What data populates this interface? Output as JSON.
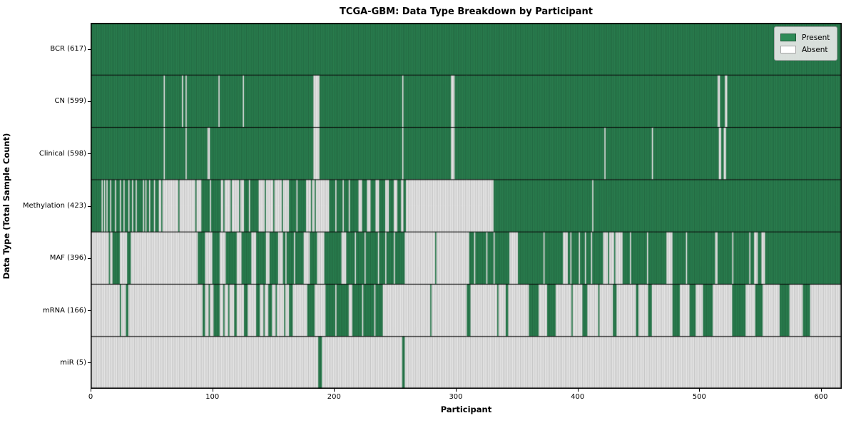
{
  "title": "TCGA-GBM: Data Type Breakdown by Participant",
  "chart_data": {
    "type": "heatmap",
    "subtype": "presence-absence-matrix",
    "title": "TCGA-GBM: Data Type Breakdown by Participant",
    "xlabel": "Participant",
    "ylabel": "Data Type (Total Sample Count)",
    "x_ticks": [
      0,
      100,
      200,
      300,
      400,
      500,
      600
    ],
    "x_max": 617,
    "n_participants": 617,
    "grid": false,
    "legend": {
      "position": "upper right",
      "entries": [
        {
          "label": "Present",
          "color": "#2e8b57"
        },
        {
          "label": "Absent",
          "color": "#ffffff"
        }
      ]
    },
    "colors": {
      "present": "#2e8b57",
      "absent": "#ffffff",
      "bar_edge": "rgba(0,0,0,0.38)",
      "row_separator": "#000000",
      "plot_border": "#000000"
    },
    "series": [
      {
        "name": "BCR",
        "count": 617,
        "label": "BCR (617)",
        "present_segments": [
          [
            0,
            617
          ]
        ]
      },
      {
        "name": "CN",
        "count": 599,
        "label": "CN (599)",
        "present_segments": [
          [
            0,
            60
          ],
          [
            61,
            75
          ],
          [
            76,
            78
          ],
          [
            79,
            105
          ],
          [
            106,
            125
          ],
          [
            126,
            183
          ],
          [
            188,
            256
          ],
          [
            257,
            296
          ],
          [
            299,
            515
          ],
          [
            517,
            521
          ],
          [
            523,
            617
          ]
        ]
      },
      {
        "name": "Clinical",
        "count": 598,
        "label": "Clinical (598)",
        "present_segments": [
          [
            0,
            60
          ],
          [
            61,
            78
          ],
          [
            79,
            96
          ],
          [
            98,
            183
          ],
          [
            188,
            256
          ],
          [
            257,
            296
          ],
          [
            299,
            422
          ],
          [
            423,
            461
          ],
          [
            462,
            516
          ],
          [
            518,
            520
          ],
          [
            522,
            617
          ]
        ]
      },
      {
        "name": "Methylation",
        "count": 423,
        "label": "Methylation (423)",
        "present_segments": [
          [
            0,
            9
          ],
          [
            10,
            11
          ],
          [
            12,
            13
          ],
          [
            14,
            16
          ],
          [
            17,
            20
          ],
          [
            21,
            24
          ],
          [
            25,
            27
          ],
          [
            28,
            31
          ],
          [
            32,
            34
          ],
          [
            35,
            37
          ],
          [
            38,
            43
          ],
          [
            44,
            45
          ],
          [
            46,
            48
          ],
          [
            49,
            52
          ],
          [
            53,
            56
          ],
          [
            58,
            59
          ],
          [
            72,
            73
          ],
          [
            86,
            87
          ],
          [
            91,
            98
          ],
          [
            99,
            107
          ],
          [
            109,
            110
          ],
          [
            115,
            116
          ],
          [
            122,
            123
          ],
          [
            126,
            130
          ],
          [
            131,
            138
          ],
          [
            143,
            144
          ],
          [
            150,
            151
          ],
          [
            157,
            158
          ],
          [
            163,
            169
          ],
          [
            170,
            177
          ],
          [
            181,
            182
          ],
          [
            184,
            185
          ],
          [
            196,
            201
          ],
          [
            202,
            207
          ],
          [
            208,
            212
          ],
          [
            213,
            220
          ],
          [
            223,
            227
          ],
          [
            230,
            234
          ],
          [
            237,
            242
          ],
          [
            245,
            249
          ],
          [
            252,
            255
          ],
          [
            257,
            259
          ],
          [
            331,
            412
          ],
          [
            413,
            617
          ]
        ]
      },
      {
        "name": "MAF",
        "count": 396,
        "label": "MAF (396)",
        "present_segments": [
          [
            15,
            16
          ],
          [
            18,
            24
          ],
          [
            30,
            33
          ],
          [
            88,
            94
          ],
          [
            100,
            106
          ],
          [
            111,
            120
          ],
          [
            124,
            132
          ],
          [
            136,
            144
          ],
          [
            147,
            154
          ],
          [
            158,
            160
          ],
          [
            161,
            167
          ],
          [
            168,
            175
          ],
          [
            180,
            186
          ],
          [
            192,
            206
          ],
          [
            210,
            217
          ],
          [
            218,
            225
          ],
          [
            226,
            236
          ],
          [
            237,
            242
          ],
          [
            243,
            249
          ],
          [
            250,
            258
          ],
          [
            283,
            284
          ],
          [
            311,
            315
          ],
          [
            316,
            325
          ],
          [
            326,
            331
          ],
          [
            332,
            344
          ],
          [
            351,
            372
          ],
          [
            373,
            388
          ],
          [
            392,
            394
          ],
          [
            395,
            401
          ],
          [
            402,
            406
          ],
          [
            407,
            411
          ],
          [
            412,
            421
          ],
          [
            425,
            426
          ],
          [
            430,
            431
          ],
          [
            437,
            443
          ],
          [
            444,
            457
          ],
          [
            458,
            473
          ],
          [
            478,
            489
          ],
          [
            490,
            513
          ],
          [
            515,
            527
          ],
          [
            528,
            541
          ],
          [
            542,
            545
          ],
          [
            548,
            551
          ],
          [
            554,
            617
          ]
        ]
      },
      {
        "name": "mRNA",
        "count": 166,
        "label": "mRNA (166)",
        "present_segments": [
          [
            24,
            25
          ],
          [
            29,
            31
          ],
          [
            92,
            94
          ],
          [
            97,
            98
          ],
          [
            101,
            106
          ],
          [
            109,
            110
          ],
          [
            113,
            114
          ],
          [
            118,
            120
          ],
          [
            126,
            129
          ],
          [
            136,
            139
          ],
          [
            142,
            143
          ],
          [
            146,
            149
          ],
          [
            152,
            153
          ],
          [
            159,
            160
          ],
          [
            163,
            166
          ],
          [
            178,
            184
          ],
          [
            193,
            201
          ],
          [
            202,
            212
          ],
          [
            215,
            223
          ],
          [
            224,
            233
          ],
          [
            234,
            240
          ],
          [
            279,
            280
          ],
          [
            309,
            312
          ],
          [
            334,
            335
          ],
          [
            341,
            343
          ],
          [
            360,
            368
          ],
          [
            375,
            382
          ],
          [
            395,
            396
          ],
          [
            404,
            408
          ],
          [
            417,
            418
          ],
          [
            429,
            432
          ],
          [
            448,
            450
          ],
          [
            458,
            461
          ],
          [
            478,
            484
          ],
          [
            492,
            497
          ],
          [
            503,
            511
          ],
          [
            527,
            538
          ],
          [
            546,
            552
          ],
          [
            566,
            574
          ],
          [
            585,
            591
          ]
        ]
      },
      {
        "name": "miR",
        "count": 5,
        "label": "miR (5)",
        "present_segments": [
          [
            187,
            190
          ],
          [
            256,
            258
          ]
        ]
      }
    ]
  }
}
